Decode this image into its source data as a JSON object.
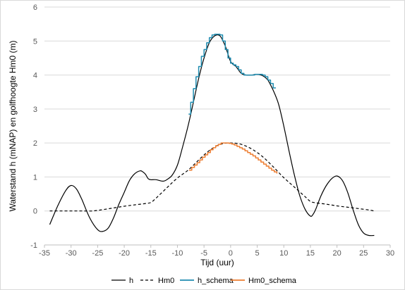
{
  "chart_data": {
    "type": "line",
    "title": "",
    "xlabel": "Tijd (uur)",
    "ylabel": "Waterstand h (mNAP) en golfhoogte Hm0 (m)",
    "xlim": [
      -35,
      30
    ],
    "ylim": [
      -1,
      6
    ],
    "xticks": [
      -35,
      -30,
      -25,
      -20,
      -15,
      -10,
      -5,
      0,
      5,
      10,
      15,
      20,
      25,
      30
    ],
    "yticks": [
      -1,
      0,
      1,
      2,
      3,
      4,
      5,
      6
    ],
    "grid": "horizontal",
    "legend_position": "bottom",
    "series": [
      {
        "name": "h",
        "color": "#000000",
        "style": "solid",
        "x": [
          -34,
          -32.5,
          -31,
          -30,
          -29,
          -28,
          -26.5,
          -25,
          -24,
          -23,
          -22,
          -21,
          -20,
          -19,
          -18,
          -17,
          -16.5,
          -16,
          -15.5,
          -15,
          -14,
          -13,
          -12.5,
          -12,
          -11,
          -10,
          -9,
          -8,
          -7,
          -6,
          -5,
          -4,
          -3,
          -2,
          -1,
          0,
          1,
          2,
          3,
          4,
          5,
          6,
          7,
          8,
          9,
          10,
          11,
          12,
          13,
          14,
          15,
          15.5,
          16,
          17,
          18,
          19,
          20,
          21,
          22,
          23,
          24,
          25,
          26,
          27
        ],
        "y": [
          -0.4,
          0.15,
          0.6,
          0.75,
          0.65,
          0.35,
          -0.2,
          -0.55,
          -0.6,
          -0.5,
          -0.2,
          0.2,
          0.55,
          0.9,
          1.1,
          1.18,
          1.15,
          1.08,
          0.95,
          0.92,
          0.92,
          0.88,
          0.88,
          0.92,
          1.05,
          1.35,
          1.9,
          2.5,
          3.2,
          3.9,
          4.5,
          4.95,
          5.15,
          5.15,
          4.85,
          4.4,
          4.25,
          4.05,
          4.0,
          4.0,
          4.02,
          3.98,
          3.85,
          3.55,
          3.15,
          2.5,
          1.75,
          1.05,
          0.45,
          0.05,
          -0.15,
          -0.1,
          0.05,
          0.45,
          0.75,
          0.95,
          1.03,
          0.9,
          0.55,
          0.05,
          -0.4,
          -0.65,
          -0.72,
          -0.72
        ]
      },
      {
        "name": "Hm0",
        "color": "#000000",
        "style": "dashed",
        "x": [
          -34,
          -32,
          -30,
          -28,
          -26,
          -24,
          -22,
          -20,
          -18,
          -16,
          -15,
          -14,
          -12,
          -10,
          -8,
          -6,
          -4,
          -2,
          0,
          2,
          4,
          6,
          8,
          10,
          12,
          14,
          15,
          16,
          18,
          20,
          22,
          24,
          26,
          27
        ],
        "y": [
          0.0,
          0.0,
          0.0,
          0.0,
          0.0,
          0.04,
          0.09,
          0.14,
          0.18,
          0.22,
          0.25,
          0.38,
          0.68,
          0.97,
          1.2,
          1.5,
          1.78,
          1.96,
          2.0,
          1.96,
          1.82,
          1.6,
          1.3,
          0.98,
          0.7,
          0.42,
          0.28,
          0.24,
          0.2,
          0.15,
          0.11,
          0.07,
          0.03,
          0.0
        ]
      },
      {
        "name": "h_schema",
        "color": "#1F8CB0",
        "style": "stepped",
        "x": [
          -7.9,
          -7.5,
          -7.0,
          -6.5,
          -6.0,
          -5.5,
          -5.0,
          -4.5,
          -4.0,
          -3.5,
          -3.0,
          -2.5,
          -2.0,
          -1.5,
          -1.0,
          -0.5,
          0.0,
          0.5,
          1.0,
          1.5,
          2.0,
          2.5,
          3.0,
          3.5,
          4.0,
          4.5,
          5.0,
          5.5,
          6.0,
          6.5,
          7.0,
          7.5,
          8.0,
          8.5
        ],
        "y": [
          2.85,
          3.2,
          3.6,
          3.95,
          4.25,
          4.55,
          4.75,
          4.95,
          5.1,
          5.18,
          5.2,
          5.2,
          5.18,
          5.0,
          4.75,
          4.5,
          4.35,
          4.3,
          4.25,
          4.15,
          4.05,
          4.0,
          4.0,
          4.0,
          4.0,
          4.02,
          4.02,
          4.02,
          4.0,
          3.95,
          3.85,
          3.75,
          3.62,
          3.62
        ]
      },
      {
        "name": "Hm0_schema",
        "color": "#ED7D31",
        "style": "stepped",
        "x": [
          -7.8,
          -7.3,
          -6.8,
          -6.3,
          -5.8,
          -5.3,
          -4.8,
          -4.3,
          -3.8,
          -3.3,
          -2.8,
          -2.3,
          -1.8,
          -1.3,
          -0.8,
          -0.3,
          0.2,
          0.7,
          1.2,
          1.7,
          2.2,
          2.7,
          3.2,
          3.7,
          4.2,
          4.7,
          5.2,
          5.7,
          6.2,
          6.7,
          7.2,
          7.7,
          8.2,
          8.7
        ],
        "y": [
          1.2,
          1.28,
          1.35,
          1.42,
          1.5,
          1.58,
          1.65,
          1.72,
          1.8,
          1.86,
          1.92,
          1.96,
          2.0,
          2.0,
          2.0,
          1.99,
          1.97,
          1.94,
          1.9,
          1.86,
          1.82,
          1.77,
          1.72,
          1.67,
          1.62,
          1.56,
          1.5,
          1.44,
          1.38,
          1.32,
          1.26,
          1.2,
          1.15,
          1.1
        ]
      }
    ]
  }
}
